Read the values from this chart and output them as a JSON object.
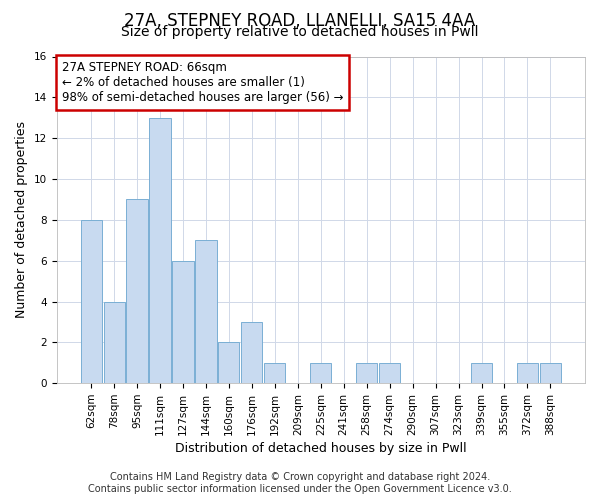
{
  "title": "27A, STEPNEY ROAD, LLANELLI, SA15 4AA",
  "subtitle": "Size of property relative to detached houses in Pwll",
  "xlabel": "Distribution of detached houses by size in Pwll",
  "ylabel": "Number of detached properties",
  "bar_color": "#c8daf0",
  "bar_edge_color": "#7aafd4",
  "categories": [
    "62sqm",
    "78sqm",
    "95sqm",
    "111sqm",
    "127sqm",
    "144sqm",
    "160sqm",
    "176sqm",
    "192sqm",
    "209sqm",
    "225sqm",
    "241sqm",
    "258sqm",
    "274sqm",
    "290sqm",
    "307sqm",
    "323sqm",
    "339sqm",
    "355sqm",
    "372sqm",
    "388sqm"
  ],
  "values": [
    8,
    4,
    9,
    13,
    6,
    7,
    2,
    3,
    1,
    0,
    1,
    0,
    1,
    1,
    0,
    0,
    0,
    1,
    0,
    1,
    1
  ],
  "ylim": [
    0,
    16
  ],
  "yticks": [
    0,
    2,
    4,
    6,
    8,
    10,
    12,
    14,
    16
  ],
  "annotation_line1": "27A STEPNEY ROAD: 66sqm",
  "annotation_line2": "← 2% of detached houses are smaller (1)",
  "annotation_line3": "98% of semi-detached houses are larger (56) →",
  "annotation_box_color": "#ffffff",
  "annotation_box_edge_color": "#cc0000",
  "footer_line1": "Contains HM Land Registry data © Crown copyright and database right 2024.",
  "footer_line2": "Contains public sector information licensed under the Open Government Licence v3.0.",
  "background_color": "#ffffff",
  "grid_color": "#d0d8e8",
  "title_fontsize": 12,
  "subtitle_fontsize": 10,
  "axis_label_fontsize": 9,
  "tick_fontsize": 7.5,
  "annotation_fontsize": 8.5,
  "footer_fontsize": 7
}
